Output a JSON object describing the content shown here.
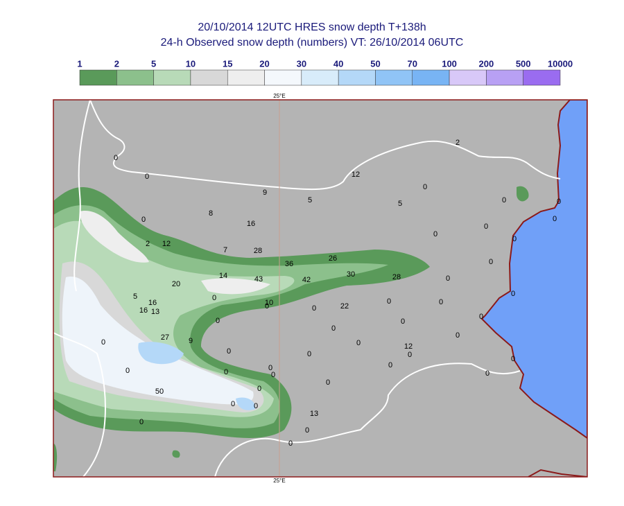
{
  "map": {
    "title": "20/10/2014 12UTC HRES snow depth T+138h",
    "subtitle": "24-h Observed snow depth (numbers) VT: 26/10/2014 06UTC",
    "colorbar": {
      "labels": [
        "1",
        "2",
        "5",
        "10",
        "15",
        "20",
        "30",
        "40",
        "50",
        "70",
        "100",
        "200",
        "500",
        "10000"
      ],
      "colors": [
        "#5a9a5a",
        "#8cc08c",
        "#b8dab8",
        "#d8d8d8",
        "#eeeeee",
        "#f4f8fc",
        "#d8ecfa",
        "#b4d8f8",
        "#90c4f6",
        "#78b4f4",
        "#d8c8f8",
        "#b8a0f4",
        "#9a6cf0",
        "#8a10f0"
      ]
    },
    "meridian_labels": [
      "25°E",
      "25°E"
    ],
    "observations": [
      "0",
      "0",
      "9",
      "12",
      "2",
      "0",
      "5",
      "5",
      "0",
      "0",
      "0",
      "8",
      "16",
      "0",
      "0",
      "0",
      "0",
      "2",
      "12",
      "7",
      "28",
      "26",
      "0",
      "36",
      "30",
      "28",
      "14",
      "43",
      "42",
      "0",
      "20",
      "0",
      "5",
      "0",
      "10",
      "0",
      "16",
      "0",
      "0",
      "22",
      "0",
      "16",
      "13",
      "0",
      "0",
      "0",
      "0",
      "27",
      "9",
      "0",
      "0",
      "0",
      "12",
      "0",
      "0",
      "0",
      "0",
      "0",
      "0",
      "0",
      "0",
      "0",
      "0",
      "0",
      "0",
      "50",
      "0",
      "0",
      "13",
      "0",
      "0",
      "0",
      "0"
    ]
  }
}
